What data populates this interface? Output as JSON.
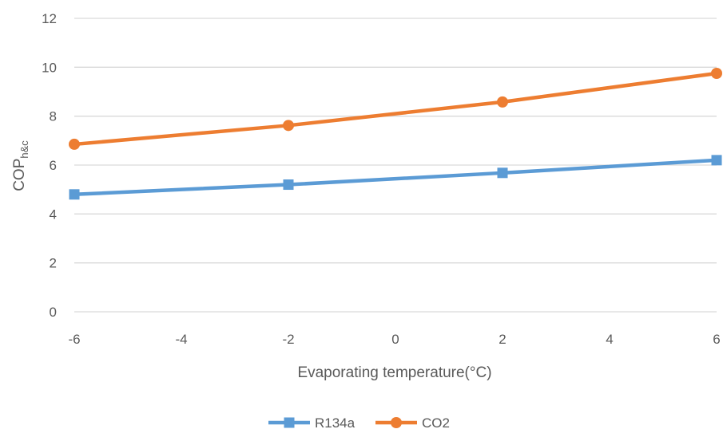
{
  "chart_data": {
    "type": "line",
    "title": "",
    "xlabel": "Evaporating temperature(°C)",
    "ylabel_main": "COP",
    "ylabel_sub": "h&c",
    "xlim": [
      -6,
      6
    ],
    "ylim": [
      0,
      12
    ],
    "x_ticks": [
      -6,
      -4,
      -2,
      0,
      2,
      4,
      6
    ],
    "y_ticks": [
      0,
      2,
      4,
      6,
      8,
      10,
      12
    ],
    "x_tick_labels": [
      "-6",
      "-4",
      "-2",
      "0",
      "2",
      "4",
      "6"
    ],
    "y_tick_labels": [
      "0",
      "2",
      "4",
      "6",
      "8",
      "10",
      "12"
    ],
    "grid": "horizontal",
    "legend_position": "bottom",
    "series": [
      {
        "name": "R134a",
        "color": "#5B9BD5",
        "marker": "square",
        "x": [
          -6,
          -2,
          2,
          6
        ],
        "y": [
          4.8,
          5.2,
          5.68,
          6.2
        ]
      },
      {
        "name": "CO2",
        "color": "#ED7D31",
        "marker": "circle",
        "x": [
          -6,
          -2,
          2,
          6
        ],
        "y": [
          6.85,
          7.62,
          8.58,
          9.75
        ]
      }
    ]
  }
}
